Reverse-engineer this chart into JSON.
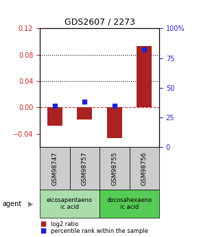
{
  "title": "GDS2607 / 2273",
  "samples": [
    "GSM98747",
    "GSM98757",
    "GSM98755",
    "GSM98756"
  ],
  "log2_ratios": [
    -0.028,
    -0.018,
    -0.047,
    0.093
  ],
  "percentile_ranks": [
    35,
    38,
    35,
    82
  ],
  "bar_color": "#aa2222",
  "dot_color": "#2222cc",
  "ylim_left": [
    -0.06,
    0.12
  ],
  "ylim_right": [
    0,
    100
  ],
  "yticks_left": [
    -0.04,
    0.0,
    0.04,
    0.08,
    0.12
  ],
  "yticks_right": [
    0,
    25,
    50,
    75,
    100
  ],
  "ytick_right_labels": [
    "0",
    "25",
    "50",
    "75",
    "100%"
  ],
  "hlines": [
    0.08,
    0.04,
    0.0
  ],
  "hline_styles": [
    "dotted",
    "dotted",
    "dashed"
  ],
  "hline_colors": [
    "black",
    "black",
    "#cc3333"
  ],
  "agents": [
    {
      "label": "eicosapentaeno\nic acid",
      "span": [
        0,
        2
      ],
      "color": "#aaddaa"
    },
    {
      "label": "docosahexaeno\nic acid",
      "span": [
        2,
        4
      ],
      "color": "#55cc55"
    }
  ],
  "legend_labels": [
    "log2 ratio",
    "percentile rank within the sample"
  ],
  "legend_colors": [
    "#aa2222",
    "#2222cc"
  ],
  "sample_box_color": "#cccccc",
  "bar_width": 0.5
}
